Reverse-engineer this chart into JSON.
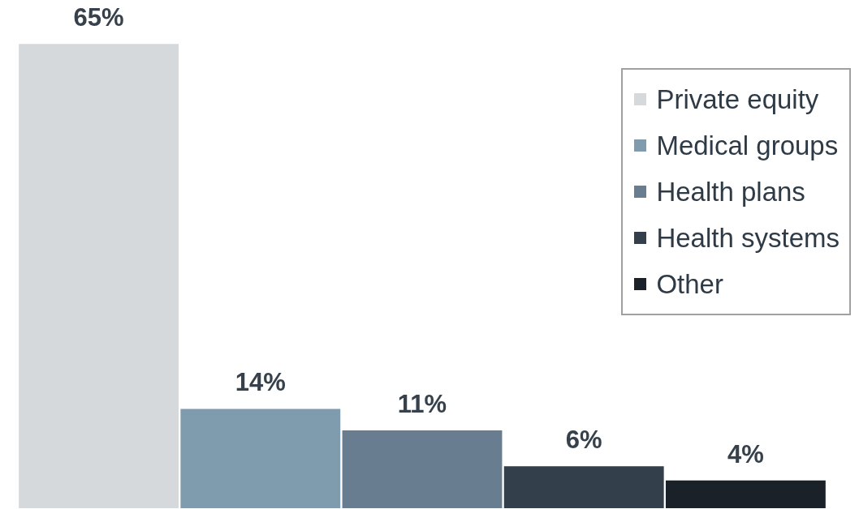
{
  "chart_data": {
    "type": "bar",
    "categories": [
      null,
      null,
      null,
      null,
      null
    ],
    "series": [
      {
        "name": "Private equity",
        "color": "#d5d9db",
        "values": [
          65,
          null,
          null,
          null,
          null
        ],
        "value_labels": [
          "65%",
          null,
          null,
          null,
          null
        ]
      },
      {
        "name": "Medical groups",
        "color": "#7f9bae",
        "values": [
          null,
          14,
          null,
          null,
          null
        ],
        "value_labels": [
          null,
          "14%",
          null,
          null,
          null
        ]
      },
      {
        "name": "Health plans",
        "color": "#687d90",
        "values": [
          null,
          null,
          11,
          null,
          null
        ],
        "value_labels": [
          null,
          null,
          "11%",
          null,
          null
        ]
      },
      {
        "name": "Health systems",
        "color": "#333f4a",
        "values": [
          null,
          null,
          null,
          6,
          null
        ],
        "value_labels": [
          null,
          null,
          null,
          "6%",
          null
        ]
      },
      {
        "name": "Other",
        "color": "#1a2129",
        "values": [
          null,
          null,
          null,
          null,
          4
        ],
        "value_labels": [
          null,
          null,
          null,
          null,
          "4%"
        ]
      }
    ],
    "stacked": true,
    "legend": "top right"
  }
}
